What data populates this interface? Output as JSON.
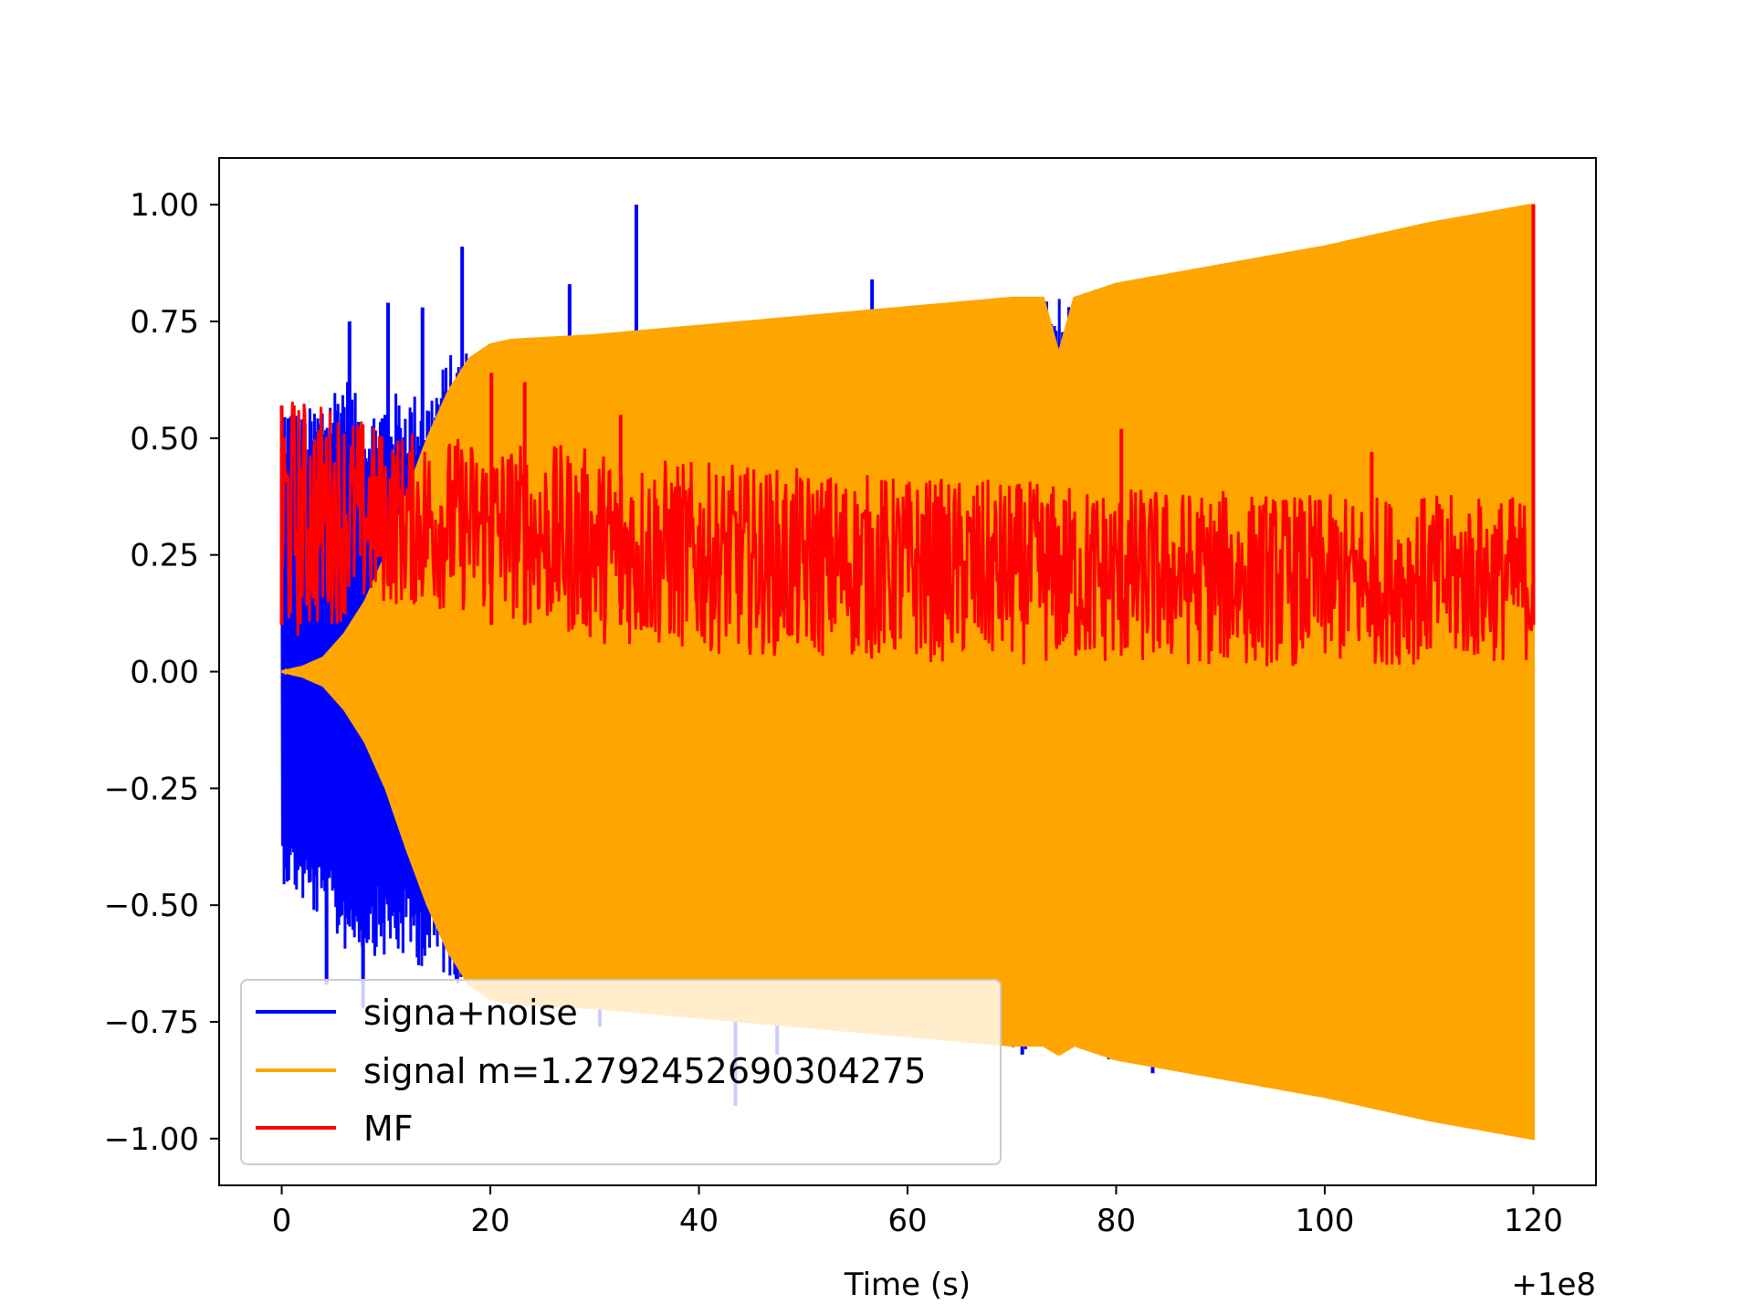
{
  "chart_data": {
    "type": "line",
    "title": "",
    "xlabel": "Time (s)",
    "ylabel": "",
    "x_offset_label": "+1e8",
    "xlim": [
      -6,
      126
    ],
    "ylim": [
      -1.1,
      1.1
    ],
    "x_ticks": [
      0,
      20,
      40,
      60,
      80,
      100,
      120
    ],
    "x_tick_labels": [
      "0",
      "20",
      "40",
      "60",
      "80",
      "100",
      "120"
    ],
    "y_ticks": [
      1.0,
      0.75,
      0.5,
      0.25,
      0.0,
      -0.25,
      -0.5,
      -0.75,
      -1.0
    ],
    "y_tick_labels": [
      "1.00",
      "0.75",
      "0.50",
      "0.25",
      "0.00",
      "−0.25",
      "−0.50",
      "−0.75",
      "−1.00"
    ],
    "grid": false,
    "legend_position": "lower-left",
    "series": [
      {
        "name": "signa+noise",
        "color": "#0000ff",
        "envelope": {
          "x": [
            0,
            2,
            4,
            6,
            8,
            10,
            12,
            14,
            16,
            18,
            20,
            30,
            40,
            50,
            60,
            70,
            80,
            90,
            100,
            110,
            120
          ],
          "upper": [
            0.6,
            0.55,
            0.6,
            0.65,
            0.55,
            0.6,
            0.6,
            0.6,
            0.68,
            0.7,
            0.71,
            0.72,
            0.74,
            0.76,
            0.78,
            0.8,
            0.83,
            0.86,
            0.9,
            0.95,
            0.98
          ],
          "lower": [
            -0.45,
            -0.5,
            -0.55,
            -0.6,
            -0.6,
            -0.62,
            -0.62,
            -0.64,
            -0.66,
            -0.68,
            -0.7,
            -0.73,
            -0.74,
            -0.76,
            -0.78,
            -0.81,
            -0.84,
            -0.87,
            -0.91,
            -0.95,
            -0.98
          ]
        },
        "spikes": [
          {
            "x": 6.5,
            "y": 0.75
          },
          {
            "x": 10.2,
            "y": 0.79
          },
          {
            "x": 13.5,
            "y": 0.78
          },
          {
            "x": 17.3,
            "y": 0.91
          },
          {
            "x": 27.6,
            "y": 0.83
          },
          {
            "x": 34.0,
            "y": 1.0
          },
          {
            "x": 56.6,
            "y": 0.84
          },
          {
            "x": 115.0,
            "y": 0.97
          },
          {
            "x": 4.3,
            "y": -0.67
          },
          {
            "x": 7.8,
            "y": -0.72
          },
          {
            "x": 30.5,
            "y": -0.76
          },
          {
            "x": 43.5,
            "y": -0.93
          },
          {
            "x": 47.5,
            "y": -0.82
          },
          {
            "x": 71.0,
            "y": -0.82
          },
          {
            "x": 83.5,
            "y": -0.86
          }
        ]
      },
      {
        "name": "signal m=1.2792452690304275",
        "color": "#ffa500",
        "envelope": {
          "x": [
            0,
            2,
            4,
            6,
            8,
            10,
            12,
            14,
            16,
            18,
            20,
            22,
            30,
            40,
            50,
            60,
            70,
            73,
            74.5,
            76,
            80,
            90,
            100,
            110,
            120
          ],
          "upper": [
            0.0,
            0.01,
            0.03,
            0.08,
            0.15,
            0.25,
            0.38,
            0.5,
            0.6,
            0.67,
            0.7,
            0.71,
            0.72,
            0.74,
            0.76,
            0.78,
            0.8,
            0.8,
            0.68,
            0.8,
            0.83,
            0.87,
            0.91,
            0.96,
            1.0
          ],
          "lower": [
            0.0,
            -0.01,
            -0.03,
            -0.08,
            -0.15,
            -0.25,
            -0.38,
            -0.5,
            -0.6,
            -0.67,
            -0.7,
            -0.71,
            -0.72,
            -0.74,
            -0.76,
            -0.78,
            -0.8,
            -0.8,
            -0.82,
            -0.8,
            -0.83,
            -0.87,
            -0.91,
            -0.96,
            -1.0
          ]
        }
      },
      {
        "name": "MF",
        "color": "#ff0000",
        "band": {
          "x": [
            0,
            5,
            10,
            20,
            30,
            40,
            60,
            80,
            100,
            120
          ],
          "lo": [
            0.05,
            0.1,
            0.14,
            0.12,
            0.06,
            0.04,
            0.02,
            0.01,
            0.01,
            0.02
          ],
          "hi": [
            0.6,
            0.58,
            0.52,
            0.5,
            0.48,
            0.45,
            0.42,
            0.4,
            0.38,
            0.38
          ]
        },
        "peaks": [
          {
            "x": 0.0,
            "y": 0.57
          },
          {
            "x": 20.1,
            "y": 0.64
          },
          {
            "x": 23.3,
            "y": 0.62
          },
          {
            "x": 32.5,
            "y": 0.55
          },
          {
            "x": 80.5,
            "y": 0.52
          },
          {
            "x": 104.5,
            "y": 0.47
          },
          {
            "x": 120.0,
            "y": 1.0
          }
        ]
      }
    ]
  }
}
